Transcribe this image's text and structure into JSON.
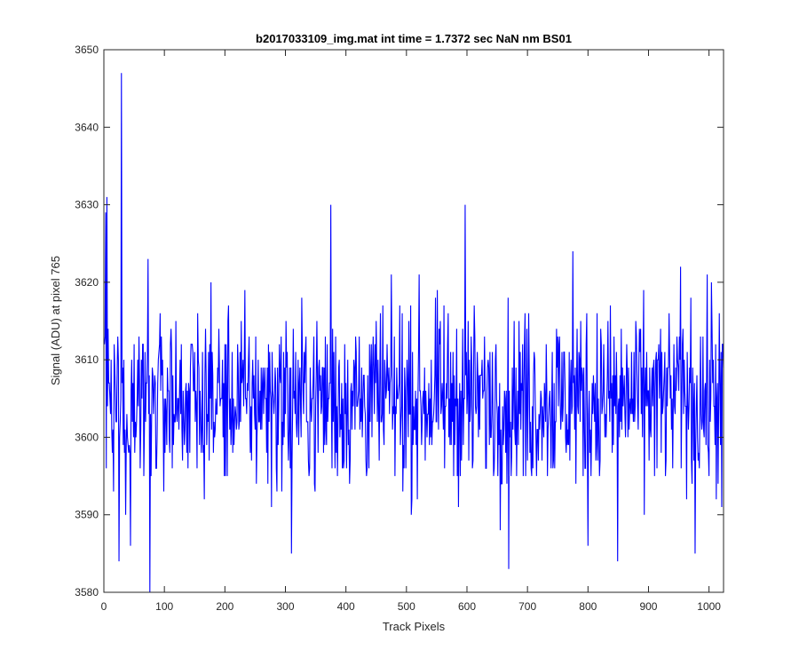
{
  "chart_data": {
    "type": "line",
    "title": "b2017033109_img.mat int time = 1.7372 sec  NaN nm BS01",
    "xlabel": "Track Pixels",
    "ylabel": "Signal (ADU) at pixel 765",
    "xlim": [
      0,
      1024
    ],
    "ylim": [
      3580,
      3650
    ],
    "xticks": [
      0,
      100,
      200,
      300,
      400,
      500,
      600,
      700,
      800,
      900,
      1000
    ],
    "yticks": [
      3580,
      3590,
      3600,
      3610,
      3620,
      3630,
      3640,
      3650
    ],
    "grid": false,
    "legend": "none",
    "line_color": "#0000ff",
    "series": [
      {
        "points_note": "",
        "x_start": 1,
        "x_step": 1,
        "count": 1024,
        "mean": 3605,
        "spread": 7,
        "highlights": [
          {
            "x": 3,
            "y": 3629
          },
          {
            "x": 5,
            "y": 3631
          },
          {
            "x": 25,
            "y": 3584
          },
          {
            "x": 29,
            "y": 3647
          },
          {
            "x": 36,
            "y": 3590
          },
          {
            "x": 44,
            "y": 3586
          },
          {
            "x": 73,
            "y": 3623
          },
          {
            "x": 76,
            "y": 3580
          },
          {
            "x": 310,
            "y": 3585
          },
          {
            "x": 375,
            "y": 3630
          },
          {
            "x": 597,
            "y": 3630
          },
          {
            "x": 669,
            "y": 3583
          },
          {
            "x": 775,
            "y": 3624
          },
          {
            "x": 800,
            "y": 3586
          },
          {
            "x": 849,
            "y": 3584
          },
          {
            "x": 953,
            "y": 3622
          },
          {
            "x": 977,
            "y": 3585
          },
          {
            "x": 1004,
            "y": 3620
          },
          {
            "x": 1021,
            "y": 3591
          }
        ]
      }
    ]
  }
}
